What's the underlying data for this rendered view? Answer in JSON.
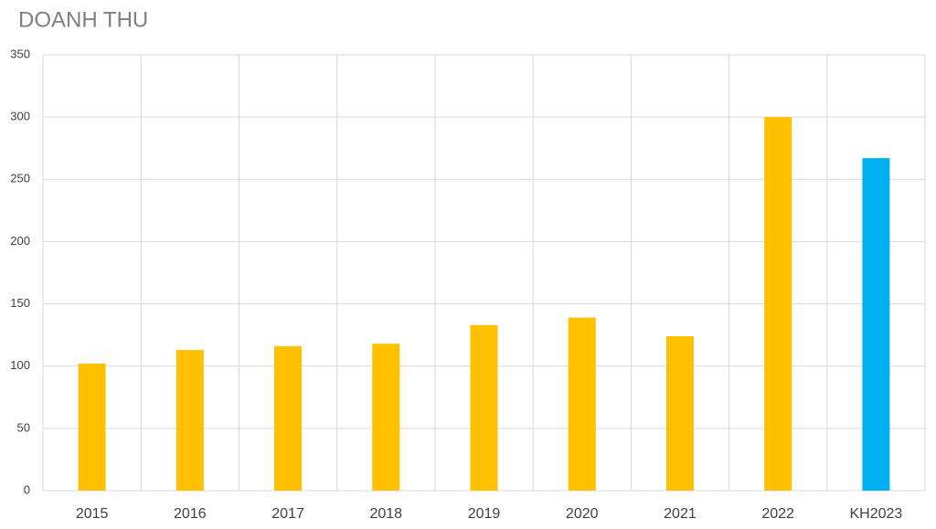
{
  "chart_data": {
    "type": "bar",
    "title": "DOANH THU",
    "categories": [
      "2015",
      "2016",
      "2017",
      "2018",
      "2019",
      "2020",
      "2021",
      "2022",
      "KH2023"
    ],
    "values": [
      102,
      113,
      116,
      118,
      133,
      139,
      124,
      300,
      267
    ],
    "colors": [
      "#ffc000",
      "#ffc000",
      "#ffc000",
      "#ffc000",
      "#ffc000",
      "#ffc000",
      "#ffc000",
      "#ffc000",
      "#00b0f0"
    ],
    "ylim": [
      0,
      350
    ],
    "yticks": [
      0,
      50,
      100,
      150,
      200,
      250,
      300,
      350
    ],
    "grid": true
  }
}
